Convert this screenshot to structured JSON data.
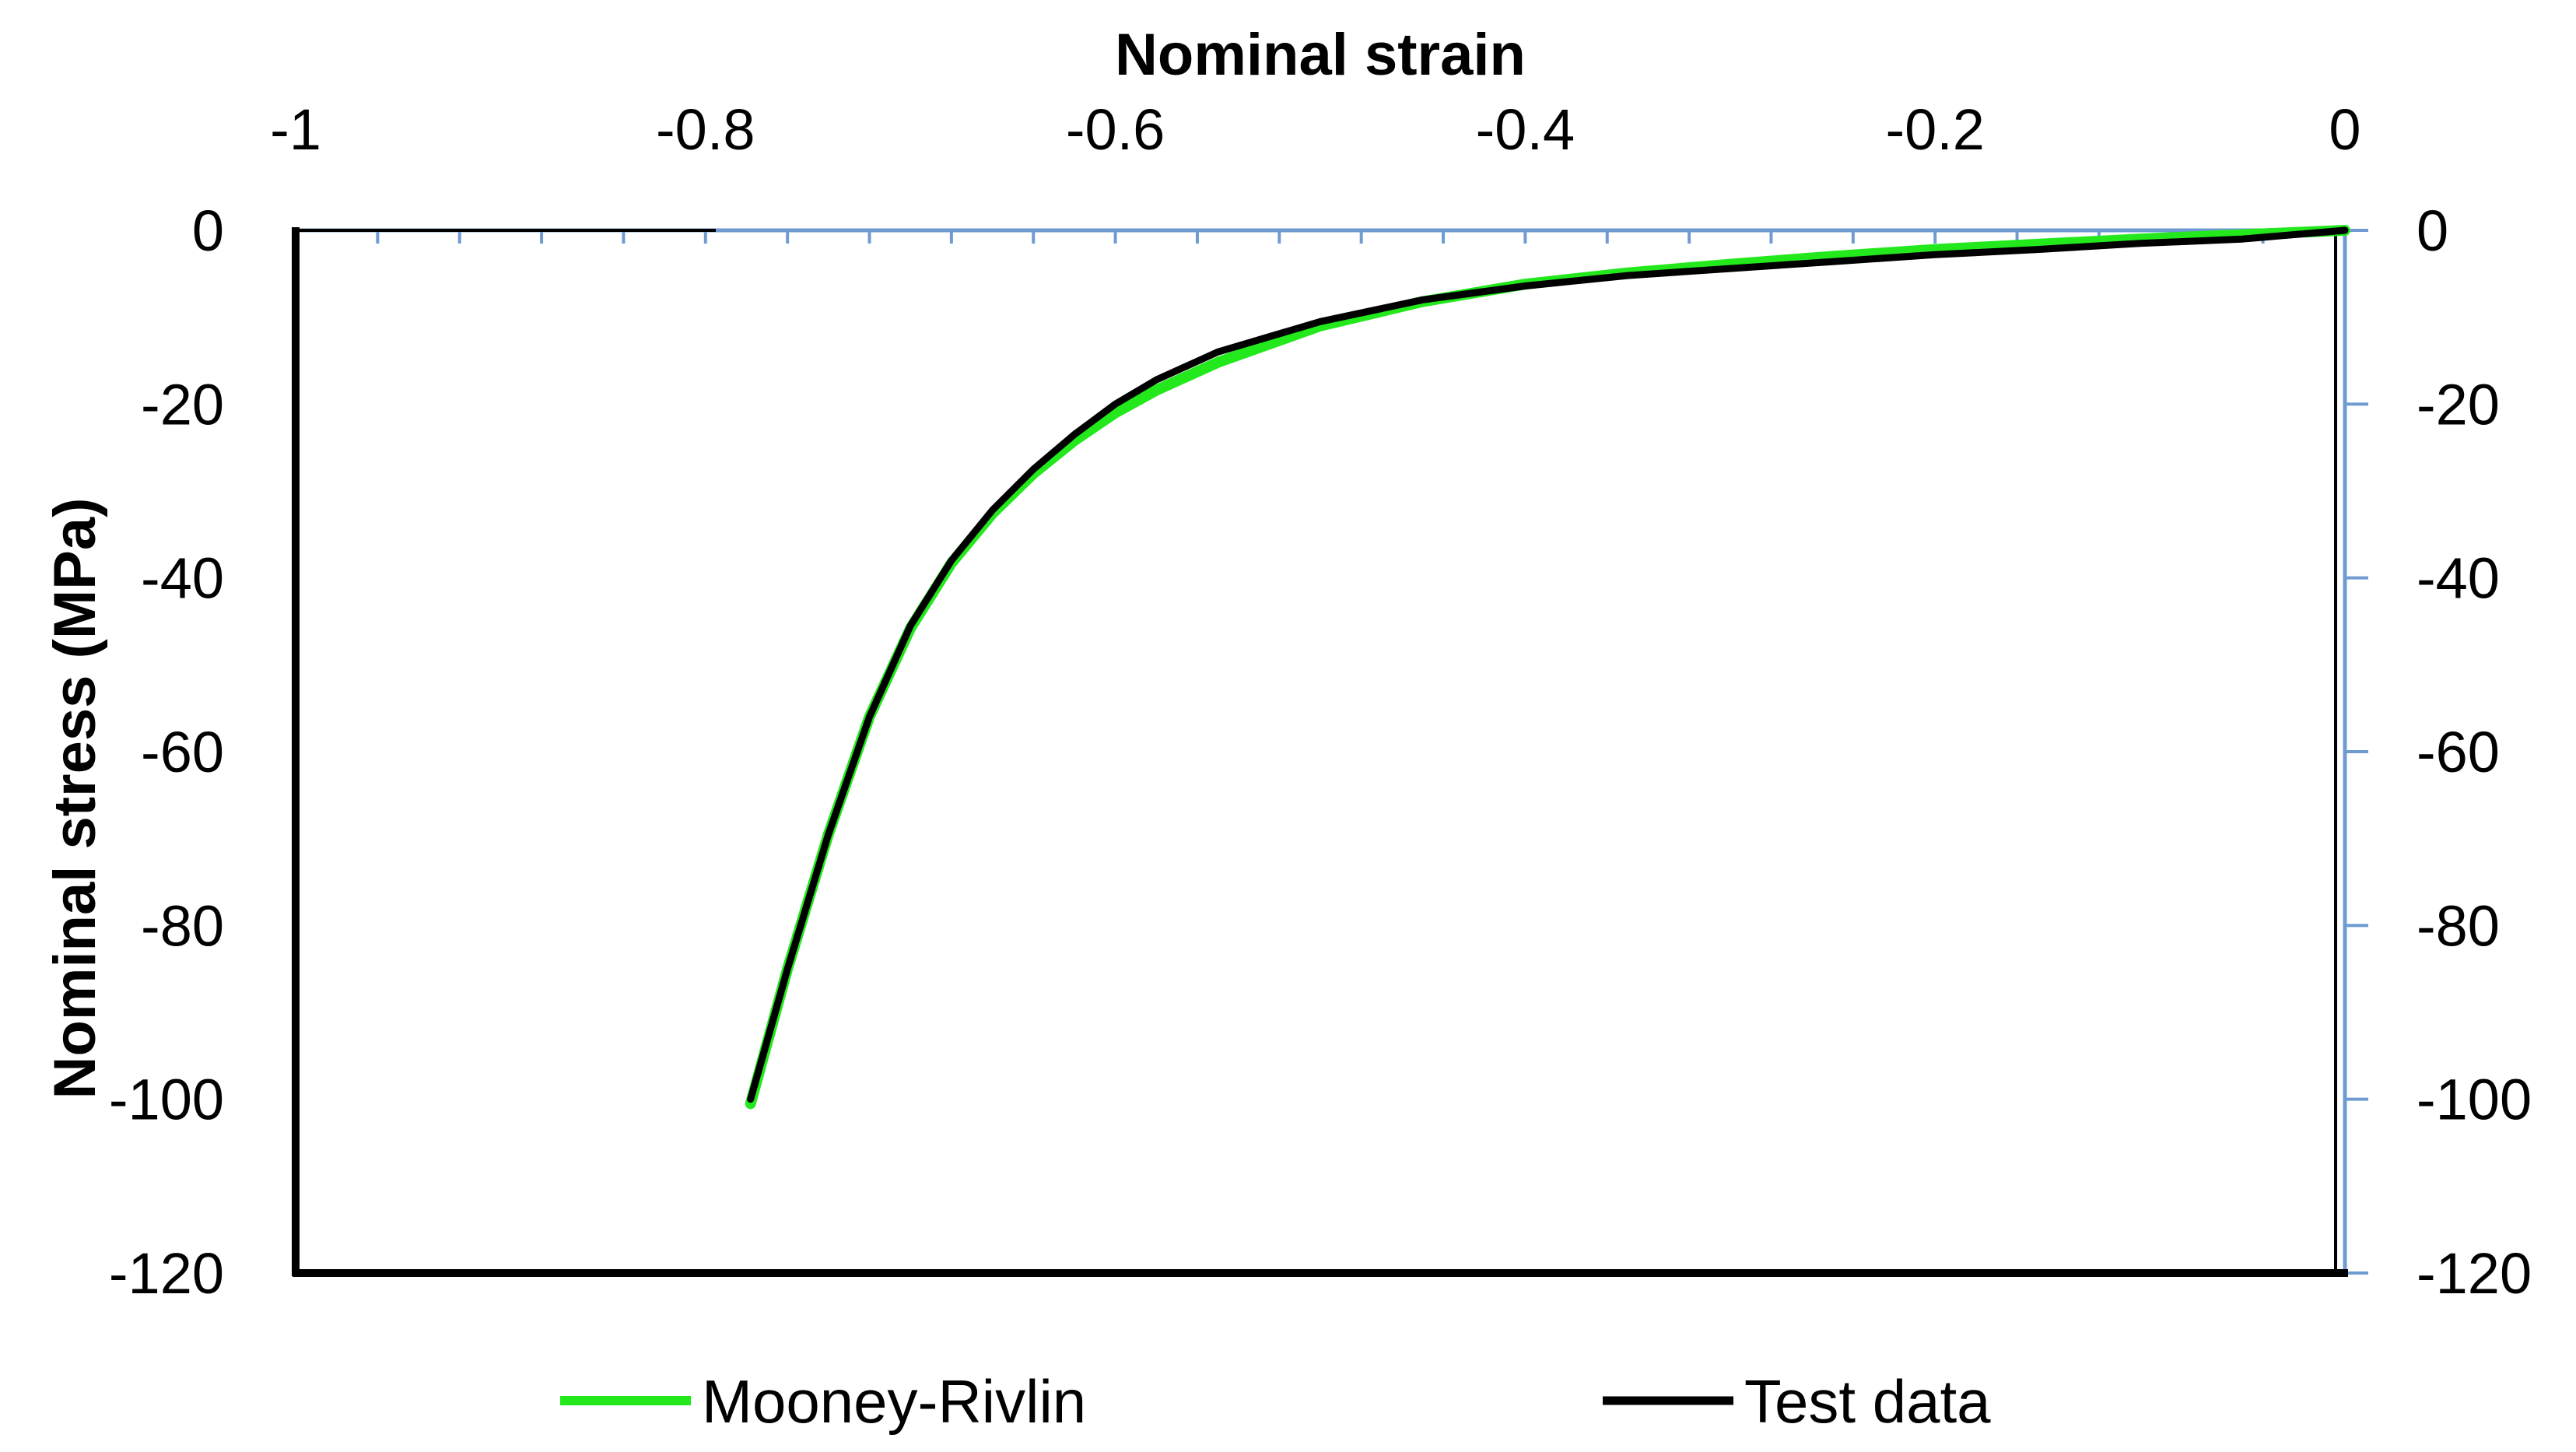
{
  "chart_data": {
    "type": "line",
    "xlabel": "Nominal strain",
    "ylabel": "Nominal stress (MPa)",
    "xlim": [
      -1,
      0
    ],
    "ylim": [
      -120,
      0
    ],
    "x_ticks": [
      "-1",
      "-0.8",
      "-0.6",
      "-0.4",
      "-0.2",
      "0"
    ],
    "y_ticks": [
      "0",
      "-20",
      "-40",
      "-60",
      "-80",
      "-100",
      "-120"
    ],
    "legend_position": "bottom",
    "grid": false,
    "series": [
      {
        "name": "Mooney-Rivlin",
        "color": "#22e81c",
        "x": [
          0,
          -0.05,
          -0.1,
          -0.15,
          -0.2,
          -0.25,
          -0.3,
          -0.35,
          -0.4,
          -0.45,
          -0.5,
          -0.55,
          -0.58,
          -0.6,
          -0.62,
          -0.64,
          -0.66,
          -0.68,
          -0.7,
          -0.72,
          -0.74,
          -0.76,
          -0.778
        ],
        "y": [
          0,
          -0.5,
          -1.0,
          -1.6,
          -2.2,
          -3.0,
          -3.9,
          -4.9,
          -6.2,
          -8.2,
          -11.0,
          -15.2,
          -18.4,
          -21.0,
          -24.2,
          -28.0,
          -32.6,
          -38.3,
          -45.8,
          -56.0,
          -69.5,
          -85.0,
          -100.5
        ]
      },
      {
        "name": "Test data",
        "color": "#000000",
        "x": [
          0,
          -0.05,
          -0.1,
          -0.15,
          -0.2,
          -0.25,
          -0.3,
          -0.35,
          -0.4,
          -0.45,
          -0.5,
          -0.55,
          -0.58,
          -0.6,
          -0.62,
          -0.64,
          -0.66,
          -0.68,
          -0.7,
          -0.72,
          -0.74,
          -0.76,
          -0.778
        ],
        "y": [
          0,
          -1.0,
          -1.5,
          -2.2,
          -2.8,
          -3.6,
          -4.4,
          -5.2,
          -6.4,
          -8.0,
          -10.5,
          -14.0,
          -17.2,
          -20.0,
          -23.5,
          -27.5,
          -32.2,
          -38.0,
          -45.5,
          -56.0,
          -69.5,
          -85.0,
          -100.0
        ]
      }
    ]
  }
}
